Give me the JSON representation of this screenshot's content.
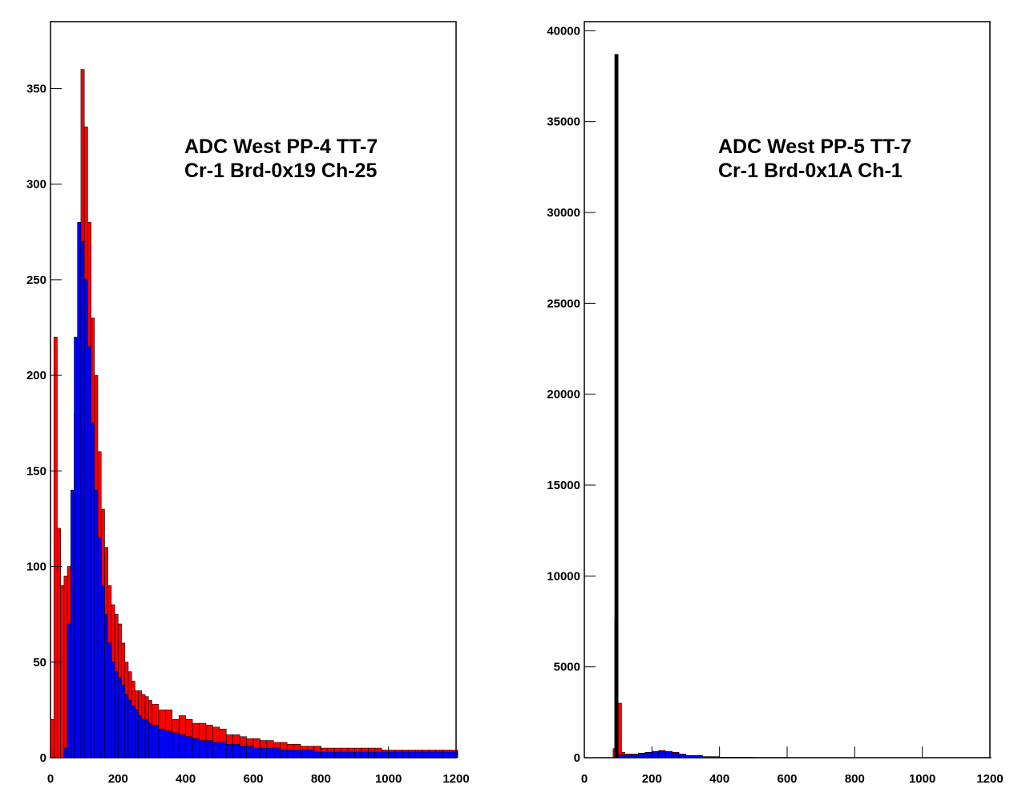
{
  "chart_data": [
    {
      "type": "histogram",
      "title_lines": [
        "ADC West PP-4 TT-7",
        "Cr-1 Brd-0x19 Ch-25"
      ],
      "xlim": [
        0,
        1200
      ],
      "ylim": [
        0,
        385
      ],
      "x_ticks": [
        0,
        200,
        400,
        600,
        800,
        1000,
        1200
      ],
      "y_ticks": [
        0,
        50,
        100,
        150,
        200,
        250,
        300,
        350
      ],
      "x_tick_labels": [
        "0",
        "200",
        "400",
        "600",
        "800",
        "1000",
        "1200"
      ],
      "y_tick_labels": [
        "0",
        "50",
        "100",
        "150",
        "200",
        "250",
        "300",
        "350"
      ],
      "series": [
        {
          "color": "#ff0000",
          "x": [
            0,
            10,
            20,
            30,
            40,
            50,
            60,
            70,
            80,
            90,
            100,
            110,
            120,
            130,
            140,
            150,
            160,
            170,
            180,
            190,
            200,
            210,
            220,
            230,
            240,
            250,
            260,
            270,
            280,
            290,
            300,
            320,
            340,
            360,
            380,
            400,
            420,
            440,
            460,
            480,
            500,
            520,
            540,
            560,
            580,
            600,
            620,
            640,
            660,
            680,
            700,
            720,
            740,
            760,
            780,
            800,
            820,
            840,
            860,
            880,
            900,
            920,
            940,
            960,
            980,
            1000,
            1020,
            1040,
            1060,
            1080,
            1100,
            1120,
            1140,
            1160,
            1180,
            1200
          ],
          "values": [
            20,
            220,
            120,
            90,
            95,
            100,
            130,
            180,
            280,
            360,
            330,
            280,
            230,
            200,
            160,
            130,
            110,
            90,
            80,
            75,
            70,
            60,
            50,
            45,
            40,
            35,
            35,
            33,
            32,
            30,
            28,
            25,
            25,
            20,
            22,
            20,
            18,
            18,
            17,
            16,
            15,
            12,
            12,
            11,
            10,
            10,
            9,
            9,
            8,
            8,
            7,
            7,
            6,
            6,
            6,
            5,
            5,
            5,
            5,
            5,
            5,
            5,
            5,
            5,
            4,
            4,
            4,
            4,
            4,
            4,
            4,
            4,
            4,
            4,
            4,
            4
          ]
        },
        {
          "color": "#0000ff",
          "x": [
            0,
            10,
            20,
            30,
            40,
            50,
            60,
            70,
            80,
            90,
            100,
            110,
            120,
            130,
            140,
            150,
            160,
            170,
            180,
            190,
            200,
            210,
            220,
            230,
            240,
            250,
            260,
            270,
            280,
            290,
            300,
            320,
            340,
            360,
            380,
            400,
            420,
            440,
            460,
            480,
            500,
            520,
            540,
            560,
            580,
            600,
            620,
            640,
            660,
            680,
            700,
            720,
            740,
            760,
            780,
            800,
            820,
            840,
            860,
            880,
            900,
            920,
            940,
            960,
            980,
            1000,
            1020,
            1040,
            1060,
            1080,
            1100,
            1120,
            1140,
            1160,
            1180,
            1200
          ],
          "values": [
            0,
            0,
            0,
            0,
            5,
            70,
            140,
            220,
            280,
            270,
            250,
            215,
            175,
            140,
            115,
            90,
            75,
            60,
            50,
            45,
            42,
            38,
            33,
            30,
            27,
            25,
            22,
            20,
            20,
            18,
            17,
            15,
            14,
            13,
            12,
            11,
            10,
            9,
            9,
            8,
            8,
            7,
            7,
            6,
            6,
            5,
            5,
            5,
            5,
            4,
            4,
            4,
            4,
            4,
            3,
            3,
            3,
            3,
            3,
            3,
            3,
            3,
            3,
            3,
            3,
            3,
            3,
            3,
            3,
            3,
            3,
            3,
            3,
            3,
            3,
            3
          ]
        }
      ]
    },
    {
      "type": "histogram",
      "title_lines": [
        "ADC West PP-5 TT-7",
        "Cr-1 Brd-0x1A Ch-1"
      ],
      "xlim": [
        0,
        1200
      ],
      "ylim": [
        0,
        40500
      ],
      "x_ticks": [
        0,
        200,
        400,
        600,
        800,
        1000,
        1200
      ],
      "y_ticks": [
        0,
        5000,
        10000,
        15000,
        20000,
        25000,
        30000,
        35000,
        40000
      ],
      "x_tick_labels": [
        "0",
        "200",
        "400",
        "600",
        "800",
        "1000",
        "1200"
      ],
      "y_tick_labels": [
        "0",
        "5000",
        "10000",
        "15000",
        "20000",
        "25000",
        "30000",
        "35000",
        "40000"
      ],
      "series": [
        {
          "color": "#ff0000",
          "x": [
            0,
            80,
            85,
            90,
            95,
            100,
            110,
            120,
            140,
            160,
            180,
            200,
            220,
            240,
            260,
            280,
            300,
            350,
            400,
            500,
            600,
            800,
            1000,
            1200
          ],
          "values": [
            0,
            0,
            500,
            7600,
            7500,
            3000,
            300,
            200,
            200,
            250,
            300,
            350,
            400,
            350,
            300,
            200,
            120,
            60,
            30,
            15,
            10,
            5,
            5,
            5
          ]
        },
        {
          "color": "#0000ff",
          "x": [
            0,
            80,
            85,
            90,
            95,
            100,
            110,
            120,
            140,
            160,
            180,
            200,
            220,
            240,
            260,
            280,
            300,
            350,
            400,
            500,
            600,
            800,
            1000,
            1200
          ],
          "values": [
            0,
            0,
            0,
            50,
            100,
            150,
            150,
            150,
            170,
            220,
            280,
            330,
            350,
            320,
            260,
            180,
            100,
            50,
            25,
            12,
            8,
            4,
            4,
            4
          ]
        },
        {
          "color": "#000000",
          "x": [
            90
          ],
          "values": [
            38700
          ]
        }
      ]
    }
  ]
}
